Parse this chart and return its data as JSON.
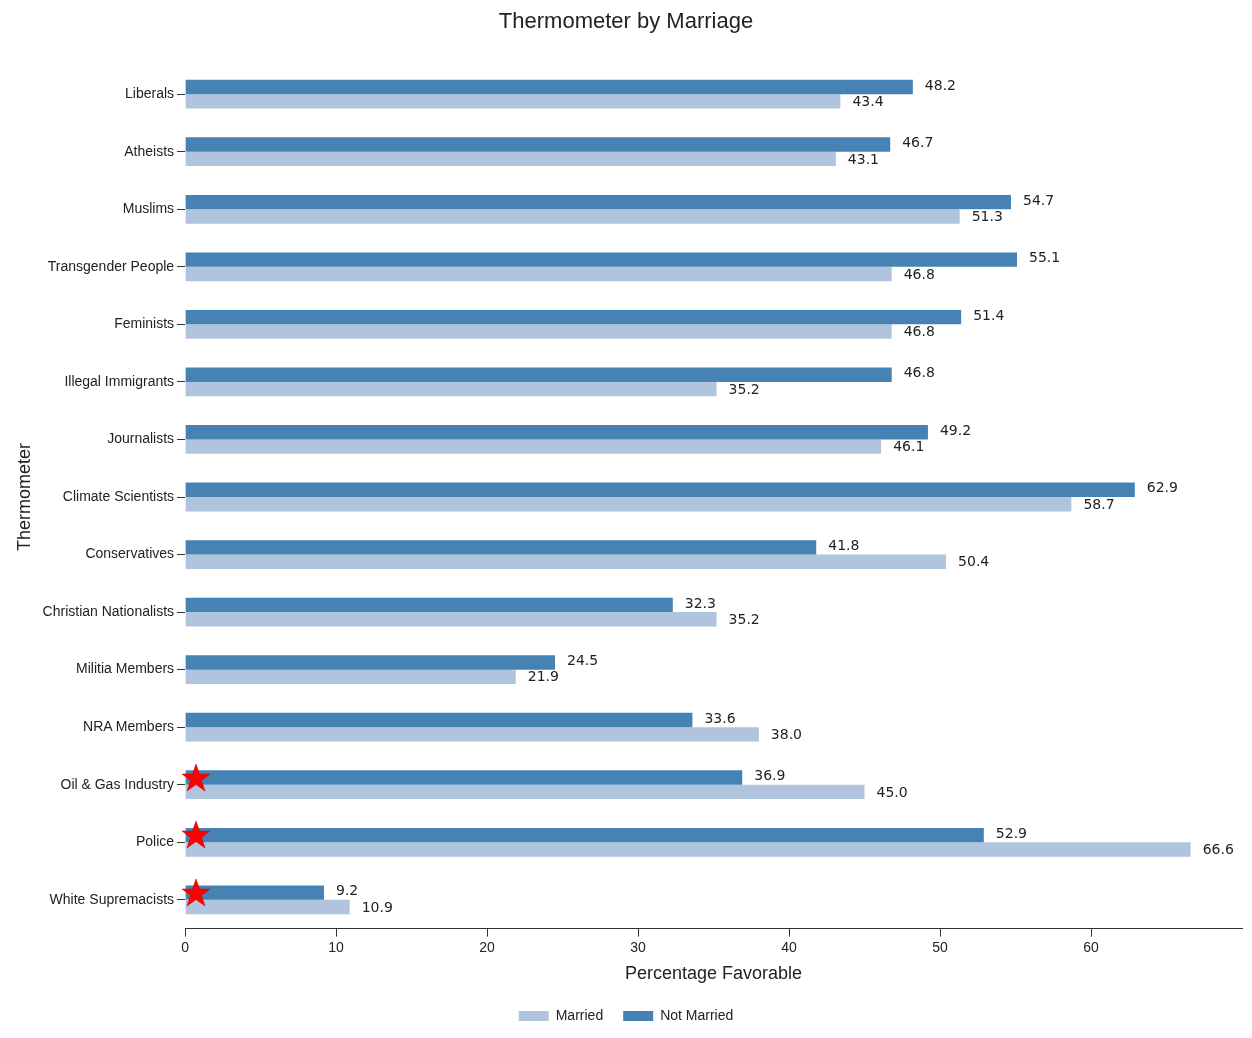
{
  "chart_data": {
    "type": "bar",
    "orientation": "horizontal",
    "title": "Thermometer by Marriage",
    "xlabel": "Percentage Favorable",
    "ylabel": "Thermometer",
    "categories": [
      "Liberals",
      "Atheists",
      "Muslims",
      "Transgender People",
      "Feminists",
      "Illegal Immigrants",
      "Journalists",
      "Climate Scientists",
      "Conservatives",
      "Christian Nationalists",
      "Militia Members",
      "NRA Members",
      "Oil & Gas Industry",
      "Police",
      "White Supremacists"
    ],
    "series": [
      {
        "name": "Married",
        "color": "#b0c4de",
        "values": [
          43.4,
          43.1,
          51.3,
          46.8,
          46.8,
          35.2,
          46.1,
          58.7,
          50.4,
          35.2,
          21.9,
          38.0,
          45.0,
          66.6,
          10.9
        ],
        "value_labels": [
          "43.4",
          "43.1",
          "51.3",
          "46.8",
          "46.8",
          "35.2",
          "46.1",
          "58.7",
          "50.4",
          "35.2",
          "21.9",
          "38.0",
          "45.0",
          "66.6",
          "10.9"
        ]
      },
      {
        "name": "Not Married",
        "color": "#4682b4",
        "values": [
          48.2,
          46.7,
          54.7,
          55.1,
          51.4,
          46.8,
          49.2,
          62.9,
          41.8,
          32.3,
          24.5,
          33.6,
          36.9,
          52.9,
          9.2
        ],
        "value_labels": [
          "48.2",
          "46.7",
          "54.7",
          "55.1",
          "51.4",
          "46.8",
          "49.2",
          "62.9",
          "41.8",
          "32.3",
          "24.5",
          "33.6",
          "36.9",
          "52.9",
          "9.2"
        ]
      }
    ],
    "xlim": [
      0,
      70
    ],
    "xticks": [
      0,
      10,
      20,
      30,
      40,
      50,
      60
    ],
    "grid": false,
    "legend": "bottom"
  }
}
